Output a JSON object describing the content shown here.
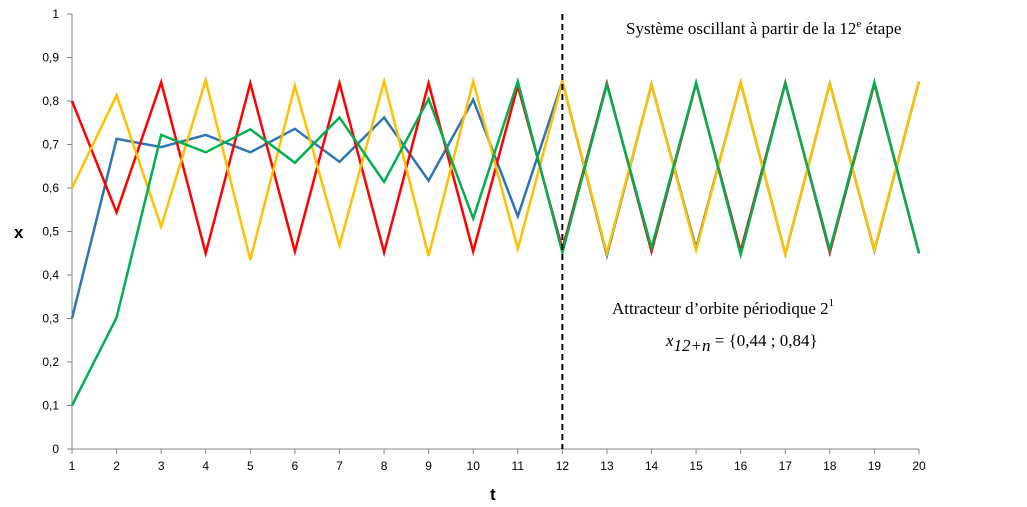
{
  "chart_data": {
    "type": "line",
    "title": "",
    "xlabel": "t",
    "ylabel": "x",
    "xlim": [
      1,
      20
    ],
    "ylim": [
      0,
      1
    ],
    "grid": false,
    "x": [
      1,
      2,
      3,
      4,
      5,
      6,
      7,
      8,
      9,
      10,
      11,
      12,
      13,
      14,
      15,
      16,
      17,
      18,
      19,
      20
    ],
    "x_tick_labels": [
      "1",
      "2",
      "3",
      "4",
      "5",
      "6",
      "7",
      "8",
      "9",
      "10",
      "11",
      "12",
      "13",
      "14",
      "15",
      "16",
      "17",
      "18",
      "19",
      "20"
    ],
    "y_tick_labels": [
      "0",
      "0,1",
      "0,2",
      "0,3",
      "0,4",
      "0,5",
      "0,6",
      "0,7",
      "0,8",
      "0,9",
      "1"
    ],
    "y_ticks": [
      0,
      0.1,
      0.2,
      0.3,
      0.4,
      0.5,
      0.6,
      0.7,
      0.8,
      0.9,
      1
    ],
    "series": [
      {
        "color": "#2e75b6",
        "values": [
          0.3,
          0.713,
          0.694,
          0.722,
          0.682,
          0.736,
          0.66,
          0.762,
          0.617,
          0.803,
          0.535,
          0.845,
          0.445,
          0.838,
          0.462,
          0.842,
          0.448,
          0.84,
          0.456,
          0.845
        ]
      },
      {
        "color": "#ff0000",
        "values": [
          0.8,
          0.544,
          0.843,
          0.45,
          0.841,
          0.454,
          0.841,
          0.452,
          0.841,
          0.454,
          0.835,
          0.46,
          0.841,
          0.454,
          0.84,
          0.455,
          0.842,
          0.452,
          0.84,
          0.45
        ]
      },
      {
        "color": "#ffc000",
        "values": [
          0.6,
          0.813,
          0.511,
          0.848,
          0.435,
          0.835,
          0.468,
          0.845,
          0.444,
          0.845,
          0.46,
          0.845,
          0.45,
          0.838,
          0.457,
          0.843,
          0.448,
          0.84,
          0.458,
          0.845
        ]
      },
      {
        "color": "#00b050",
        "values": [
          0.1,
          0.302,
          0.722,
          0.682,
          0.735,
          0.658,
          0.762,
          0.614,
          0.805,
          0.53,
          0.845,
          0.452,
          0.838,
          0.462,
          0.842,
          0.447,
          0.84,
          0.458,
          0.843,
          0.45
        ]
      }
    ],
    "vline_x": 12,
    "annotations": {
      "top": "Système oscillant à partir de la 12",
      "top_sup": "e",
      "top_tail": " étape",
      "attractor_line1": "Attracteur d’orbite périodique 2",
      "attractor_sup": "1",
      "attractor_math_var": "x",
      "attractor_math_sub": "12+n",
      "attractor_math_rest": " = {0,44 ; 0,84}"
    }
  }
}
